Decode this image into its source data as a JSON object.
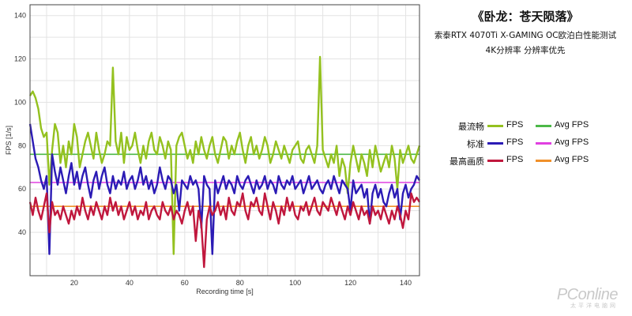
{
  "chart_data": {
    "type": "line",
    "title": "《卧龙：苍天陨落》",
    "subtitle": "索泰RTX 4070Ti X-GAMING OC欧泊白性能测试",
    "subtitle2": "4K分辨率 分辨率优先",
    "xlabel": "Recording time [s]",
    "ylabel": "FPS [1/s]",
    "xlim": [
      4,
      145
    ],
    "ylim": [
      20,
      145
    ],
    "xticks": [
      20,
      40,
      60,
      80,
      100,
      120,
      140
    ],
    "yticks": [
      40,
      60,
      80,
      100,
      120,
      140
    ],
    "grid": true,
    "legend_position": "right",
    "series": [
      {
        "name": "最流畅",
        "color": "#94c11f",
        "avg_color": "#4cb848",
        "avg_label": "Avg FPS",
        "value_label": "FPS",
        "avg": 76,
        "x": [
          4,
          5,
          6,
          7,
          8,
          9,
          10,
          11,
          12,
          13,
          14,
          15,
          16,
          17,
          18,
          19,
          20,
          21,
          22,
          23,
          24,
          25,
          26,
          27,
          28,
          29,
          30,
          31,
          32,
          33,
          34,
          35,
          36,
          37,
          38,
          39,
          40,
          41,
          42,
          43,
          44,
          45,
          46,
          47,
          48,
          49,
          50,
          51,
          52,
          53,
          54,
          55,
          56,
          57,
          58,
          59,
          60,
          61,
          62,
          63,
          64,
          65,
          66,
          67,
          68,
          69,
          70,
          71,
          72,
          73,
          74,
          75,
          76,
          77,
          78,
          79,
          80,
          81,
          82,
          83,
          84,
          85,
          86,
          87,
          88,
          89,
          90,
          91,
          92,
          93,
          94,
          95,
          96,
          97,
          98,
          99,
          100,
          101,
          102,
          103,
          104,
          105,
          106,
          107,
          108,
          109,
          110,
          111,
          112,
          113,
          114,
          115,
          116,
          117,
          118,
          119,
          120,
          121,
          122,
          123,
          124,
          125,
          126,
          127,
          128,
          129,
          130,
          131,
          132,
          133,
          134,
          135,
          136,
          137,
          138,
          139,
          140,
          141,
          142,
          143,
          144,
          145
        ],
        "y": [
          103,
          105,
          102,
          97,
          88,
          84,
          86,
          62,
          78,
          90,
          86,
          72,
          80,
          70,
          82,
          76,
          90,
          84,
          70,
          76,
          82,
          86,
          80,
          74,
          86,
          78,
          72,
          76,
          82,
          80,
          116,
          82,
          76,
          86,
          72,
          84,
          78,
          80,
          86,
          78,
          72,
          80,
          74,
          82,
          86,
          78,
          76,
          84,
          80,
          74,
          82,
          78,
          30,
          80,
          84,
          86,
          80,
          74,
          78,
          72,
          82,
          76,
          84,
          78,
          74,
          80,
          84,
          76,
          72,
          78,
          84,
          82,
          74,
          80,
          76,
          82,
          86,
          78,
          72,
          80,
          84,
          76,
          80,
          74,
          78,
          84,
          80,
          72,
          76,
          82,
          78,
          74,
          80,
          76,
          72,
          78,
          80,
          82,
          74,
          72,
          78,
          80,
          76,
          72,
          80,
          121,
          78,
          74,
          70,
          76,
          72,
          80,
          66,
          74,
          70,
          58,
          72,
          80,
          74,
          68,
          76,
          72,
          66,
          78,
          70,
          80,
          74,
          68,
          72,
          76,
          70,
          80,
          74,
          60,
          78,
          72,
          76,
          80,
          74,
          72,
          76,
          80
        ]
      },
      {
        "name": "标准",
        "color": "#2b1bb5",
        "avg_color": "#e040e0",
        "avg_label": "Avg FPS",
        "value_label": "FPS",
        "avg": 63,
        "x": [
          4,
          5,
          6,
          7,
          8,
          9,
          10,
          11,
          12,
          13,
          14,
          15,
          16,
          17,
          18,
          19,
          20,
          21,
          22,
          23,
          24,
          25,
          26,
          27,
          28,
          29,
          30,
          31,
          32,
          33,
          34,
          35,
          36,
          37,
          38,
          39,
          40,
          41,
          42,
          43,
          44,
          45,
          46,
          47,
          48,
          49,
          50,
          51,
          52,
          53,
          54,
          55,
          56,
          57,
          58,
          59,
          60,
          61,
          62,
          63,
          64,
          65,
          66,
          67,
          68,
          69,
          70,
          71,
          72,
          73,
          74,
          75,
          76,
          77,
          78,
          79,
          80,
          81,
          82,
          83,
          84,
          85,
          86,
          87,
          88,
          89,
          90,
          91,
          92,
          93,
          94,
          95,
          96,
          97,
          98,
          99,
          100,
          101,
          102,
          103,
          104,
          105,
          106,
          107,
          108,
          109,
          110,
          111,
          112,
          113,
          114,
          115,
          116,
          117,
          118,
          119,
          120,
          121,
          122,
          123,
          124,
          125,
          126,
          127,
          128,
          129,
          130,
          131,
          132,
          133,
          134,
          135,
          136,
          137,
          138,
          139,
          140,
          141,
          142,
          143,
          144,
          145
        ],
        "y": [
          90,
          82,
          74,
          70,
          64,
          60,
          66,
          30,
          76,
          68,
          62,
          70,
          64,
          58,
          66,
          72,
          62,
          68,
          60,
          66,
          70,
          62,
          56,
          64,
          68,
          60,
          66,
          70,
          62,
          58,
          66,
          60,
          64,
          62,
          68,
          60,
          64,
          66,
          60,
          64,
          70,
          62,
          66,
          60,
          64,
          58,
          62,
          70,
          64,
          60,
          66,
          64,
          58,
          62,
          50,
          64,
          62,
          60,
          66,
          62,
          64,
          60,
          42,
          66,
          62,
          60,
          30,
          64,
          58,
          62,
          66,
          60,
          64,
          62,
          58,
          66,
          62,
          60,
          64,
          66,
          62,
          58,
          64,
          60,
          62,
          66,
          60,
          64,
          62,
          58,
          66,
          62,
          60,
          64,
          62,
          66,
          60,
          62,
          64,
          58,
          62,
          66,
          60,
          62,
          64,
          60,
          58,
          62,
          64,
          60,
          66,
          62,
          58,
          64,
          62,
          60,
          50,
          64,
          58,
          60,
          62,
          56,
          60,
          44,
          58,
          62,
          56,
          60,
          54,
          52,
          58,
          62,
          56,
          60,
          46,
          58,
          62,
          56,
          60,
          62,
          66,
          64
        ]
      },
      {
        "name": "最高画质",
        "color": "#c0173d",
        "avg_color": "#f0902a",
        "avg_label": "Avg FPS",
        "value_label": "FPS",
        "avg": 52,
        "x": [
          4,
          5,
          6,
          7,
          8,
          9,
          10,
          11,
          12,
          13,
          14,
          15,
          16,
          17,
          18,
          19,
          20,
          21,
          22,
          23,
          24,
          25,
          26,
          27,
          28,
          29,
          30,
          31,
          32,
          33,
          34,
          35,
          36,
          37,
          38,
          39,
          40,
          41,
          42,
          43,
          44,
          45,
          46,
          47,
          48,
          49,
          50,
          51,
          52,
          53,
          54,
          55,
          56,
          57,
          58,
          59,
          60,
          61,
          62,
          63,
          64,
          65,
          66,
          67,
          68,
          69,
          70,
          71,
          72,
          73,
          74,
          75,
          76,
          77,
          78,
          79,
          80,
          81,
          82,
          83,
          84,
          85,
          86,
          87,
          88,
          89,
          90,
          91,
          92,
          93,
          94,
          95,
          96,
          97,
          98,
          99,
          100,
          101,
          102,
          103,
          104,
          105,
          106,
          107,
          108,
          109,
          110,
          111,
          112,
          113,
          114,
          115,
          116,
          117,
          118,
          119,
          120,
          121,
          122,
          123,
          124,
          125,
          126,
          127,
          128,
          129,
          130,
          131,
          132,
          133,
          134,
          135,
          136,
          137,
          138,
          139,
          140,
          141,
          142,
          143,
          144,
          145
        ],
        "y": [
          54,
          48,
          56,
          50,
          46,
          52,
          58,
          40,
          54,
          48,
          50,
          46,
          52,
          48,
          44,
          50,
          46,
          52,
          48,
          56,
          50,
          46,
          52,
          48,
          54,
          50,
          46,
          52,
          48,
          56,
          50,
          54,
          48,
          52,
          46,
          50,
          54,
          48,
          52,
          46,
          50,
          48,
          54,
          46,
          50,
          52,
          48,
          46,
          54,
          50,
          48,
          52,
          46,
          50,
          48,
          44,
          50,
          54,
          48,
          52,
          36,
          50,
          44,
          24,
          46,
          52,
          48,
          50,
          54,
          48,
          52,
          46,
          56,
          50,
          48,
          54,
          52,
          58,
          50,
          46,
          54,
          52,
          56,
          50,
          48,
          58,
          52,
          46,
          54,
          50,
          44,
          52,
          48,
          56,
          50,
          54,
          48,
          46,
          52,
          50,
          54,
          48,
          52,
          56,
          50,
          48,
          54,
          52,
          50,
          56,
          52,
          48,
          54,
          50,
          46,
          52,
          48,
          54,
          50,
          46,
          52,
          48,
          50,
          44,
          52,
          48,
          50,
          46,
          52,
          48,
          44,
          50,
          46,
          52,
          48,
          42,
          50,
          46,
          58,
          54,
          56,
          54
        ]
      }
    ]
  },
  "watermark": {
    "brand": "PConline",
    "tagline": "太平洋电脑网"
  }
}
